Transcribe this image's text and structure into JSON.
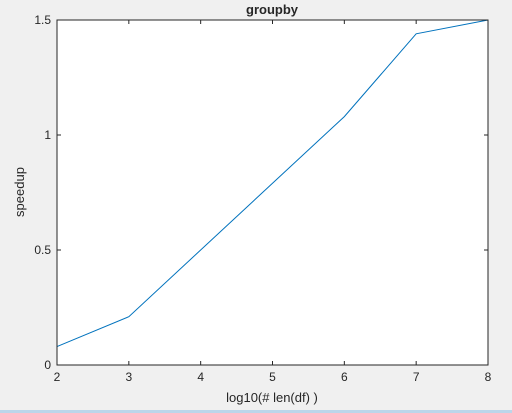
{
  "chart_data": {
    "type": "line",
    "title": "groupby",
    "xlabel": "log10(# len(df) )",
    "ylabel": "speedup",
    "xlim": [
      2,
      8
    ],
    "ylim": [
      0,
      1.5
    ],
    "xticks": [
      2,
      3,
      4,
      5,
      6,
      7,
      8
    ],
    "yticks": [
      0,
      0.5,
      1,
      1.5
    ],
    "xtick_labels": [
      "2",
      "3",
      "4",
      "5",
      "6",
      "7",
      "8"
    ],
    "ytick_labels": [
      "0",
      "0.5",
      "1",
      "1.5"
    ],
    "grid": false,
    "series": [
      {
        "x": [
          2,
          3,
          6,
          7,
          8
        ],
        "values": [
          0.08,
          0.21,
          1.08,
          1.44,
          1.5
        ]
      }
    ]
  },
  "colors": {
    "line": "#0072bd",
    "axes": "#262626",
    "plot_background": "#ffffff",
    "figure_background": "#f0f0f0"
  }
}
